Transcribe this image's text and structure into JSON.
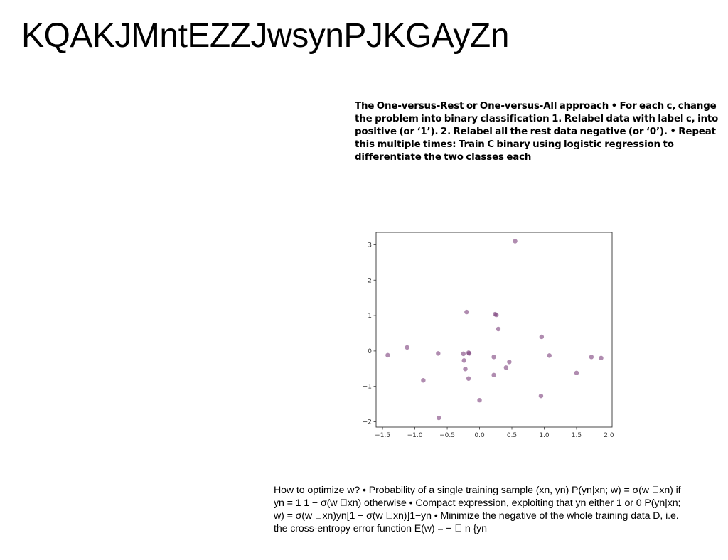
{
  "page": {
    "title": "KQAKJMntEZZJwsynPJKGAyZn",
    "bold_paragraph": "The One-versus-Rest or One-versus-All approach • For each c, change the problem into binary classification 1. Relabel data with label c, into positive (or ‘1’). 2. Relabel all the rest data negative (or ‘0’). • Repeat this multiple times: Train C binary using logistic regression to differentiate the two classes each",
    "body_paragraph": "How to optimize w? • Probability of a single training sample (xn, yn) P(yn|xn; w) = σ(w \u0000xn) if yn = 1 1 − σ(w \u0000xn) otherwise • Compact expression, exploiting that yn either 1 or 0 P(yn|xn; w) = σ(w \u0000xn)yn[1 − σ(w \u0000xn)]1−yn • Minimize the negative of the whole training data D, i.e. the cross-entropy error function E(w) = − \u0000 n {yn"
  },
  "chart_data": {
    "type": "scatter",
    "title": "",
    "xlabel": "",
    "ylabel": "",
    "xlim": [
      -1.6,
      2.05
    ],
    "ylim": [
      -2.15,
      3.35
    ],
    "grid": false,
    "xticks": [
      -1.5,
      -1.0,
      -0.5,
      0.0,
      0.5,
      1.0,
      1.5,
      2.0
    ],
    "yticks": [
      -2,
      -1,
      0,
      1,
      2,
      3
    ],
    "xtick_labels": [
      "−1.5",
      "−1.0",
      "−0.5",
      "0.0",
      "0.5",
      "1.0",
      "1.5",
      "2.0"
    ],
    "ytick_labels": [
      "−2",
      "−1",
      "0",
      "1",
      "2",
      "3"
    ],
    "point_color": "#7b3f7b",
    "series": [
      {
        "x": [
          0.55,
          -0.2,
          0.24,
          0.26,
          0.29,
          0.96,
          -1.12,
          -1.42,
          -0.64,
          -0.17,
          -0.16,
          -0.25,
          0.22,
          1.08,
          1.73,
          1.88,
          -0.24,
          0.41,
          0.46,
          -0.22,
          1.5,
          0.22,
          -0.17,
          -0.87,
          0.95,
          0.0,
          -0.63
        ],
        "y": [
          3.1,
          1.1,
          1.04,
          1.02,
          0.62,
          0.4,
          0.1,
          -0.12,
          -0.07,
          -0.05,
          -0.07,
          -0.08,
          -0.17,
          -0.13,
          -0.17,
          -0.2,
          -0.27,
          -0.47,
          -0.31,
          -0.51,
          -0.62,
          -0.68,
          -0.78,
          -0.83,
          -1.27,
          -1.39,
          -1.89
        ]
      }
    ]
  }
}
